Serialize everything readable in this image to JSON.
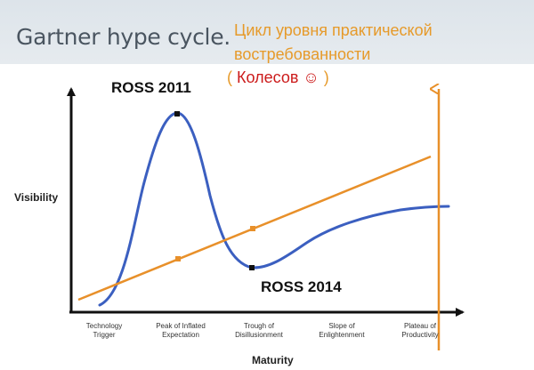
{
  "header": {
    "title": "Gartner hype cycle.",
    "ru_title_line1": "Цикл уровня практической",
    "ru_title_line2": "востребованности",
    "author_open": "( ",
    "author_name": "Колесов",
    "author_smiley": "☺",
    "author_close": " )"
  },
  "annotations": {
    "ross_2011": "ROSS 2011",
    "ross_2014": "ROSS 2014"
  },
  "axes": {
    "y_label": "Visibility",
    "x_label": "Maturity"
  },
  "phases": [
    {
      "line1": "Technology",
      "line2": "Trigger"
    },
    {
      "line1": "Peak of Inflated",
      "line2": "Expectation"
    },
    {
      "line1": "Trough of",
      "line2": "Disillusionment"
    },
    {
      "line1": "Slope of",
      "line2": "Enlightenment"
    },
    {
      "line1": "Plateau of",
      "line2": "Productivity"
    }
  ],
  "colors": {
    "hype_curve": "#3b5fc0",
    "trend_line": "#e8902a",
    "axis": "#111111",
    "author": "#cc1b1b"
  }
}
